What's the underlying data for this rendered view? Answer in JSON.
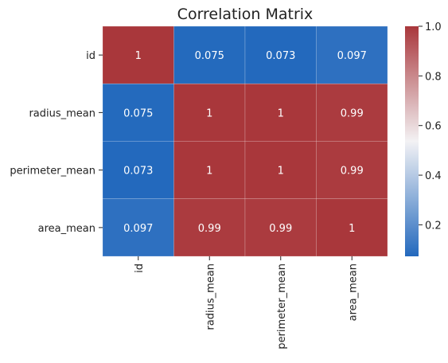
{
  "chart_data": {
    "type": "heatmap",
    "title": "Correlation Matrix",
    "row_labels": [
      "id",
      "radius_mean",
      "perimeter_mean",
      "area_mean"
    ],
    "col_labels": [
      "id",
      "radius_mean",
      "perimeter_mean",
      "area_mean"
    ],
    "values": [
      [
        1,
        0.075,
        0.073,
        0.097
      ],
      [
        0.075,
        1,
        1,
        0.99
      ],
      [
        0.073,
        1,
        1,
        0.99
      ],
      [
        0.097,
        0.99,
        0.99,
        1
      ]
    ],
    "annotations": [
      [
        "1",
        "0.075",
        "0.073",
        "0.097"
      ],
      [
        "0.075",
        "1",
        "1",
        "0.99"
      ],
      [
        "0.073",
        "1",
        "1",
        "0.99"
      ],
      [
        "0.097",
        "0.99",
        "0.99",
        "1"
      ]
    ],
    "colorscale": {
      "name": "vlag",
      "vmin": 0.073,
      "vmax": 1.0,
      "low_color": "#2369bd",
      "mid_color": "#f3f2f4",
      "high_color": "#a9373b"
    },
    "colorbar": {
      "ticks": [
        0.2,
        0.4,
        0.6,
        0.8,
        1.0
      ],
      "tick_labels": [
        "0.2",
        "0.4",
        "0.6",
        "0.8",
        "1.0"
      ]
    },
    "annotation_color": "#ffffff"
  }
}
